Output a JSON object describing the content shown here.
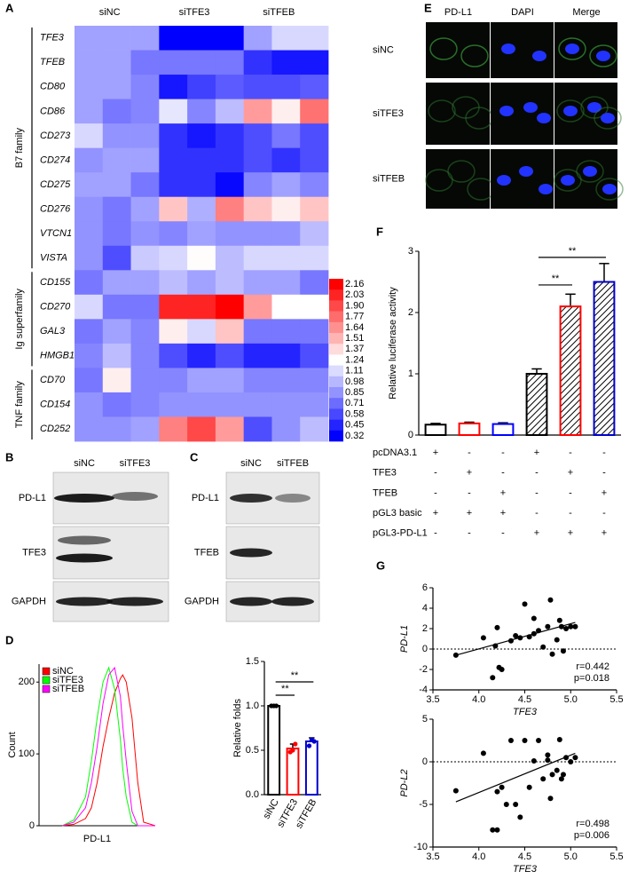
{
  "panel_labels": [
    "A",
    "B",
    "C",
    "D",
    "E",
    "F",
    "G"
  ],
  "chart_data": [
    {
      "type": "heatmap",
      "column_groups": [
        "siNC",
        "siTFE3",
        "siTFEB"
      ],
      "clim": [
        0.32,
        2.16
      ],
      "colors": [
        "#0000ff",
        "#ffffff",
        "#ff0000"
      ],
      "colorbar_ticks": [
        2.16,
        2.03,
        {
          "value": 1.9,
          "label": "1.90"
        },
        1.77,
        1.64,
        1.51,
        1.37,
        1.24,
        1.11,
        0.98,
        0.85,
        0.71,
        0.58,
        0.45,
        0.32
      ],
      "row_groups": [
        {
          "name": "B7 family",
          "rows": [
            {
              "label": "TFE3",
              "values": [
                0.9,
                0.9,
                0.9,
                0.32,
                0.32,
                0.32,
                0.9,
                1.1,
                1.1
              ]
            },
            {
              "label": "TFEB",
              "values": [
                0.9,
                0.9,
                0.75,
                0.75,
                0.75,
                0.75,
                0.5,
                0.4,
                0.4
              ]
            },
            {
              "label": "CD80",
              "values": [
                0.9,
                0.9,
                0.8,
                0.4,
                0.55,
                0.65,
                0.6,
                0.6,
                0.65
              ]
            },
            {
              "label": "CD86",
              "values": [
                0.9,
                0.75,
                0.8,
                1.15,
                0.8,
                1.0,
                1.6,
                1.3,
                1.75
              ]
            },
            {
              "label": "CD273",
              "values": [
                1.1,
                0.85,
                0.85,
                0.5,
                0.4,
                0.5,
                0.6,
                0.75,
                0.6
              ]
            },
            {
              "label": "CD274",
              "values": [
                0.85,
                0.9,
                0.9,
                0.5,
                0.5,
                0.5,
                0.6,
                0.5,
                0.6
              ]
            },
            {
              "label": "CD275",
              "values": [
                0.9,
                0.9,
                0.75,
                0.5,
                0.5,
                0.35,
                0.8,
                0.9,
                0.8
              ]
            },
            {
              "label": "CD276",
              "values": [
                0.85,
                0.75,
                0.9,
                1.45,
                0.95,
                1.7,
                1.45,
                1.3,
                1.45
              ]
            },
            {
              "label": "VTCN1",
              "values": [
                0.85,
                0.75,
                0.85,
                0.8,
                0.9,
                0.85,
                0.85,
                0.85,
                1.0
              ]
            },
            {
              "label": "VISTA",
              "values": [
                0.85,
                0.6,
                1.05,
                1.1,
                1.25,
                1.0,
                1.1,
                1.1,
                1.1
              ]
            }
          ]
        },
        {
          "name": "Ig superfamily",
          "rows": [
            {
              "label": "CD155",
              "values": [
                0.75,
                0.9,
                0.9,
                1.0,
                0.9,
                1.0,
                0.9,
                0.9,
                0.75
              ]
            },
            {
              "label": "CD270",
              "values": [
                1.1,
                0.75,
                0.75,
                2.03,
                2.03,
                2.16,
                1.6,
                1.24,
                1.24
              ]
            },
            {
              "label": "GAL3",
              "values": [
                0.75,
                0.9,
                0.8,
                1.3,
                1.1,
                1.45,
                0.75,
                0.75,
                0.75
              ]
            },
            {
              "label": "HMGB1",
              "values": [
                0.8,
                1.0,
                0.8,
                0.6,
                0.45,
                0.6,
                0.45,
                0.45,
                0.6
              ]
            }
          ]
        },
        {
          "name": "TNF family",
          "rows": [
            {
              "label": "CD70",
              "values": [
                0.75,
                1.3,
                0.8,
                0.8,
                0.9,
                0.9,
                0.8,
                0.8,
                0.8
              ]
            },
            {
              "label": "CD154",
              "values": [
                0.85,
                0.75,
                0.8,
                0.85,
                0.85,
                0.85,
                0.85,
                0.85,
                0.85
              ]
            },
            {
              "label": "CD252",
              "values": [
                0.85,
                0.85,
                0.9,
                1.7,
                1.9,
                1.6,
                0.6,
                0.85,
                1.0
              ]
            }
          ]
        }
      ]
    },
    {
      "type": "line",
      "xlabel": "PD-L1",
      "ylabel": "Count",
      "xlim": [
        0,
        100
      ],
      "ylim": [
        0,
        225
      ],
      "yticks": [
        0,
        100,
        200
      ],
      "x": [
        20,
        30,
        40,
        45,
        50,
        55,
        60,
        65,
        70,
        72,
        75,
        80,
        85,
        90,
        100
      ],
      "series": [
        {
          "name": "siNC",
          "color": "#ff0000",
          "values": [
            0,
            2,
            10,
            25,
            60,
            110,
            150,
            185,
            205,
            210,
            200,
            150,
            60,
            5,
            0
          ]
        },
        {
          "name": "siTFE3",
          "color": "#00ff00",
          "values": [
            0,
            8,
            40,
            90,
            150,
            200,
            220,
            190,
            120,
            80,
            40,
            5,
            0,
            0,
            0
          ]
        },
        {
          "name": "siTFEB",
          "color": "#ff00ff",
          "values": [
            0,
            5,
            25,
            60,
            110,
            170,
            210,
            220,
            180,
            140,
            90,
            20,
            0,
            0,
            0
          ]
        }
      ]
    },
    {
      "type": "bar",
      "ylabel": "Relative folds",
      "categories": [
        "siNC",
        "siTFE3",
        "siTFEB"
      ],
      "values": [
        1.0,
        0.52,
        0.6
      ],
      "errors": [
        0.01,
        0.05,
        0.04
      ],
      "points": [
        [
          1.0,
          1.0,
          1.0
        ],
        [
          0.48,
          0.5,
          0.57
        ],
        [
          0.55,
          0.62,
          0.6
        ]
      ],
      "colors": [
        "#000000",
        "#ff0000",
        "#0000cc"
      ],
      "ylim": [
        0,
        1.5
      ],
      "yticks": [
        {
          "value": 0,
          "label": "0.0"
        },
        0.5,
        {
          "value": 1,
          "label": "1.0"
        },
        1.5
      ],
      "annotations": [
        "**",
        "**"
      ]
    },
    {
      "type": "bar",
      "ylabel": "Relative luciferase activity",
      "categories": [
        null,
        null,
        null,
        null,
        null,
        null
      ],
      "values": [
        0.17,
        0.19,
        0.18,
        1.0,
        2.1,
        2.5
      ],
      "errors": [
        0.02,
        0.02,
        0.02,
        0.08,
        0.2,
        0.3
      ],
      "colors": [
        "#000000",
        "#ff0000",
        "#0000ff",
        "#000000",
        "#ff0000",
        "#0000cc"
      ],
      "hatched": [
        false,
        false,
        false,
        true,
        true,
        true
      ],
      "ylim": [
        0,
        3
      ],
      "yticks": [
        0,
        1,
        2,
        3
      ],
      "annotations": [
        "**",
        "**"
      ],
      "condition_table": {
        "rows": [
          {
            "label": "pcDNA3.1",
            "cells": [
              "+",
              "-",
              "-",
              "+",
              "-",
              "-"
            ]
          },
          {
            "label": "TFE3",
            "cells": [
              "-",
              "+",
              "-",
              "-",
              "+",
              "-"
            ]
          },
          {
            "label": "TFEB",
            "cells": [
              "-",
              "-",
              "+",
              "-",
              "-",
              "+"
            ]
          },
          {
            "label": "pGL3 basic",
            "cells": [
              "+",
              "+",
              "+",
              "-",
              "-",
              "-"
            ]
          },
          {
            "label": "pGL3-PD-L1",
            "cells": [
              "-",
              "-",
              "-",
              "+",
              "+",
              "+"
            ]
          }
        ]
      }
    },
    {
      "type": "scatter",
      "xlabel": "TFE3",
      "ylabel": "PD-L1",
      "xlim": [
        3.5,
        5.5
      ],
      "xticks": [
        3.5,
        {
          "value": 4,
          "label": "4.0"
        },
        4.5,
        {
          "value": 5,
          "label": "5.0"
        },
        5.5
      ],
      "ylim": [
        -4,
        6
      ],
      "yticks": [
        -4,
        -2,
        0,
        2,
        4,
        6
      ],
      "reference_line": 0,
      "x": [
        3.75,
        4.05,
        4.15,
        4.18,
        4.2,
        4.22,
        4.25,
        4.35,
        4.4,
        4.45,
        4.5,
        4.55,
        4.6,
        4.65,
        4.7,
        4.75,
        4.78,
        4.8,
        4.85,
        4.88,
        4.9,
        4.92,
        4.95,
        5.0,
        5.05,
        4.6
      ],
      "values": [
        -0.6,
        1.1,
        -2.8,
        0.3,
        2.1,
        -1.8,
        -2.0,
        0.8,
        1.3,
        1.1,
        4.4,
        1.2,
        1.5,
        1.8,
        0.2,
        2.2,
        4.8,
        -0.5,
        0.9,
        2.8,
        2.2,
        -0.2,
        2.0,
        2.2,
        2.2,
        3.0
      ],
      "color": "#000000",
      "fit": {
        "x": [
          3.75,
          5.05
        ],
        "y": [
          -0.6,
          2.6
        ]
      },
      "annotations": [
        "r=0.442",
        "p=0.018"
      ]
    },
    {
      "type": "scatter",
      "xlabel": "TFE3",
      "ylabel": "PD-L2",
      "xlim": [
        3.5,
        5.5
      ],
      "xticks": [
        3.5,
        {
          "value": 4,
          "label": "4.0"
        },
        4.5,
        {
          "value": 5,
          "label": "5.0"
        },
        5.5
      ],
      "ylim": [
        -10,
        5
      ],
      "yticks": [
        -10,
        -5,
        0,
        5
      ],
      "reference_line": 0,
      "x": [
        3.75,
        4.05,
        4.15,
        4.2,
        4.2,
        4.25,
        4.3,
        4.35,
        4.4,
        4.45,
        4.5,
        4.55,
        4.6,
        4.65,
        4.7,
        4.75,
        4.78,
        4.8,
        4.85,
        4.88,
        4.9,
        4.92,
        4.95,
        5.0,
        5.05,
        4.75
      ],
      "values": [
        -3.4,
        1.0,
        -8.0,
        -8.0,
        -3.5,
        -3.0,
        -5.0,
        2.5,
        -5.0,
        -6.5,
        2.5,
        -3.0,
        0.1,
        2.5,
        -2.0,
        0.2,
        -4.3,
        -1.5,
        -1.0,
        2.6,
        -2.0,
        -1.5,
        0.5,
        0.0,
        0.5,
        0.8
      ],
      "color": "#000000",
      "fit": {
        "x": [
          3.75,
          5.05
        ],
        "y": [
          -4.7,
          1.0
        ]
      },
      "annotations": [
        "r=0.498",
        "p=0.006"
      ]
    }
  ],
  "western_blots": [
    {
      "columns": [
        "siNC",
        "siTFE3"
      ],
      "rows": [
        "PD-L1",
        "TFE3",
        "GAPDH"
      ]
    },
    {
      "columns": [
        "siNC",
        "siTFEB"
      ],
      "rows": [
        "PD-L1",
        "TFEB",
        "GAPDH"
      ]
    }
  ],
  "microscopy": {
    "columns": [
      "PD-L1",
      "DAPI",
      "Merge"
    ],
    "rows": [
      "siNC",
      "siTFE3",
      "siTFEB"
    ]
  }
}
